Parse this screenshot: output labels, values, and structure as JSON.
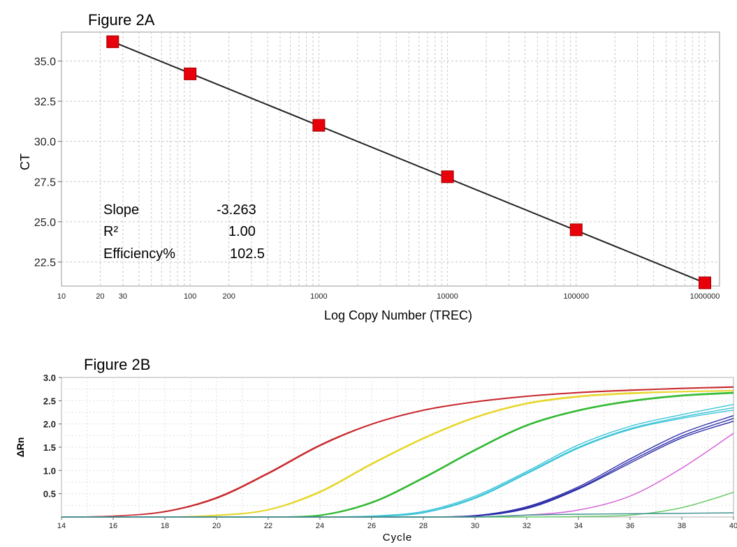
{
  "chart_data": [
    {
      "type": "scatter",
      "title": "Figure 2A",
      "xlabel": "Log Copy Number (TREC)",
      "ylabel": "CT",
      "x_scale": "log",
      "xlim": [
        10,
        1300000
      ],
      "ylim": [
        21.0,
        36.8
      ],
      "grid": true,
      "x_tick_labels": [
        "10",
        "20",
        "30",
        "100",
        "200",
        "1000",
        "10000",
        "100000",
        "1000000"
      ],
      "x_ticks": [
        10,
        20,
        30,
        100,
        200,
        1000,
        10000,
        100000,
        1000000
      ],
      "y_tick_labels": [
        "35.0",
        "32.5",
        "30.0",
        "27.5",
        "25.0",
        "22.5"
      ],
      "y_ticks": [
        35.0,
        32.5,
        30.0,
        27.5,
        25.0,
        22.5
      ],
      "x": [
        25,
        100,
        1000,
        10000,
        100000,
        1000000
      ],
      "values": [
        36.2,
        34.2,
        31.0,
        27.8,
        24.5,
        21.2
      ],
      "fit_line": {
        "x": [
          25,
          1000000
        ],
        "y": [
          36.2,
          21.2
        ]
      },
      "marker_color": "#e8000b",
      "line_color": "#222222",
      "annotations": [
        {
          "label": "Slope",
          "value": "-3.263"
        },
        {
          "label": "R²",
          "value": "1.00"
        },
        {
          "label": "Efficiency%",
          "value": "102.5"
        }
      ]
    },
    {
      "type": "line",
      "title": "Figure 2B",
      "xlabel": "Cycle",
      "ylabel": "ΔRn",
      "xlim": [
        14,
        40
      ],
      "ylim": [
        0,
        3.0
      ],
      "grid": true,
      "x_tick_labels": [
        "14",
        "16",
        "18",
        "20",
        "22",
        "24",
        "26",
        "28",
        "30",
        "32",
        "34",
        "36",
        "38",
        "40"
      ],
      "x_ticks": [
        14,
        16,
        18,
        20,
        22,
        24,
        26,
        28,
        30,
        32,
        34,
        36,
        38,
        40
      ],
      "y_tick_labels": [
        "3.0",
        "2.5",
        "2.0",
        "1.5",
        "1.0",
        "0.5"
      ],
      "y_ticks": [
        3.0,
        2.5,
        2.0,
        1.5,
        1.0,
        0.5
      ],
      "x": [
        14,
        16,
        18,
        20,
        22,
        24,
        26,
        28,
        30,
        32,
        34,
        36,
        38,
        40
      ],
      "series": [
        {
          "color": "#c8282d",
          "values": [
            0,
            0.02,
            0.12,
            0.42,
            0.95,
            1.55,
            2.0,
            2.3,
            2.48,
            2.6,
            2.68,
            2.73,
            2.77,
            2.8
          ]
        },
        {
          "color": "#c8282d",
          "values": [
            0,
            0.02,
            0.11,
            0.4,
            0.93,
            1.53,
            1.99,
            2.29,
            2.47,
            2.59,
            2.67,
            2.72,
            2.76,
            2.79
          ]
        },
        {
          "color": "#e6d62a",
          "values": [
            0,
            0,
            0,
            0.04,
            0.16,
            0.55,
            1.15,
            1.7,
            2.15,
            2.45,
            2.6,
            2.67,
            2.7,
            2.72
          ]
        },
        {
          "color": "#e6d62a",
          "values": [
            0,
            0,
            0,
            0.03,
            0.15,
            0.53,
            1.13,
            1.68,
            2.13,
            2.43,
            2.58,
            2.65,
            2.69,
            2.71
          ]
        },
        {
          "color": "#2fb82f",
          "values": [
            0,
            0,
            0,
            0,
            0,
            0.04,
            0.32,
            0.85,
            1.45,
            1.98,
            2.3,
            2.5,
            2.62,
            2.68
          ]
        },
        {
          "color": "#2fb82f",
          "values": [
            0,
            0,
            0,
            0,
            0,
            0.03,
            0.3,
            0.83,
            1.43,
            1.96,
            2.28,
            2.48,
            2.6,
            2.66
          ]
        },
        {
          "color": "#3cc4d8",
          "values": [
            0,
            0,
            0,
            0,
            0,
            0,
            0.02,
            0.12,
            0.45,
            0.98,
            1.55,
            1.95,
            2.2,
            2.42
          ]
        },
        {
          "color": "#3cc4d8",
          "values": [
            0,
            0,
            0,
            0,
            0,
            0,
            0.02,
            0.1,
            0.42,
            0.95,
            1.5,
            1.9,
            2.15,
            2.35
          ]
        },
        {
          "color": "#3cc4d8",
          "values": [
            0,
            0,
            0,
            0,
            0,
            0,
            0.01,
            0.09,
            0.4,
            0.93,
            1.48,
            1.88,
            2.12,
            2.3
          ]
        },
        {
          "color": "#2b2ca8",
          "values": [
            0,
            0,
            0,
            0,
            0,
            0,
            0,
            0,
            0.03,
            0.22,
            0.65,
            1.25,
            1.8,
            2.18
          ]
        },
        {
          "color": "#2b2ca8",
          "values": [
            0,
            0,
            0,
            0,
            0,
            0,
            0,
            0,
            0.02,
            0.2,
            0.62,
            1.2,
            1.74,
            2.12
          ]
        },
        {
          "color": "#2b2ca8",
          "values": [
            0,
            0,
            0,
            0,
            0,
            0,
            0,
            0,
            0.02,
            0.18,
            0.6,
            1.16,
            1.7,
            2.06
          ]
        },
        {
          "color": "#d65fd6",
          "values": [
            0,
            0,
            0,
            0,
            0,
            0,
            0,
            0,
            0,
            0.04,
            0.15,
            0.45,
            1.05,
            1.8
          ]
        },
        {
          "color": "#5ec85e",
          "values": [
            0,
            0,
            0,
            0,
            0,
            0,
            0,
            0,
            0,
            0,
            0.01,
            0.04,
            0.2,
            0.53
          ]
        },
        {
          "color": "#3b8f8f",
          "values": [
            0,
            0,
            0,
            0,
            0,
            0,
            0,
            0,
            0,
            0.04,
            0.06,
            0.07,
            0.08,
            0.09
          ]
        }
      ]
    }
  ]
}
